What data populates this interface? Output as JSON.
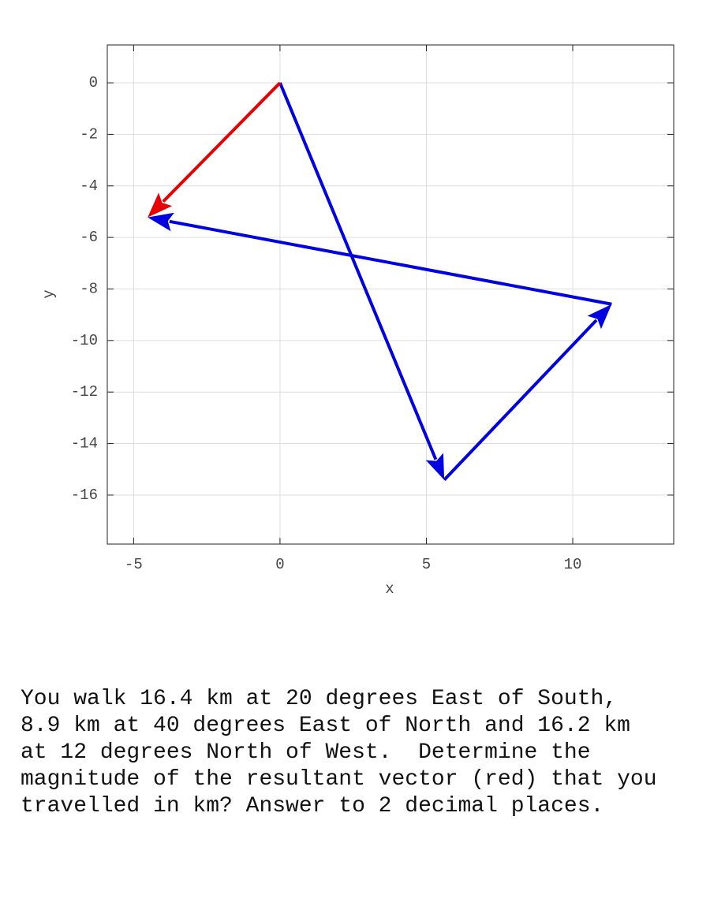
{
  "chart_data": {
    "type": "vector",
    "xlabel": "x",
    "ylabel": "y",
    "xlim": [
      -5.9,
      13.45
    ],
    "ylim": [
      -17.9,
      1.47
    ],
    "xticks": [
      -5,
      0,
      5,
      10
    ],
    "yticks": [
      0,
      -2,
      -4,
      -6,
      -8,
      -10,
      -12,
      -14,
      -16
    ],
    "grid": true,
    "vectors": [
      {
        "color": "#0000e0",
        "x": [
          0,
          5.61
        ],
        "y": [
          0,
          -15.41
        ]
      },
      {
        "color": "#0000e0",
        "x": [
          5.61,
          11.33
        ],
        "y": [
          -15.41,
          -8.59
        ]
      },
      {
        "color": "#0000e0",
        "x": [
          11.33,
          -4.52
        ],
        "y": [
          -8.59,
          -5.22
        ]
      },
      {
        "color": "#e80000",
        "x": [
          0,
          -4.52
        ],
        "y": [
          0,
          -5.22
        ]
      }
    ]
  },
  "question": {
    "lines": [
      "You walk 16.4 km at 20 degrees East of South,",
      "8.9 km at 40 degrees East of North and 16.2 km",
      "at 12 degrees North of West.  Determine the",
      "magnitude of the resultant vector (red) that you",
      "travelled in km? Answer to 2 decimal places."
    ]
  }
}
